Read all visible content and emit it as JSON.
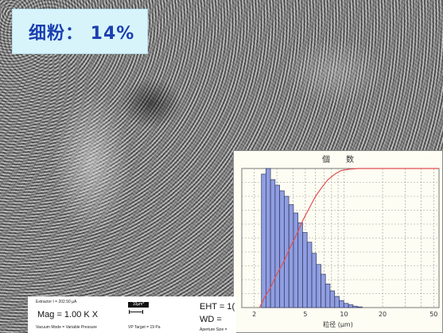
{
  "title_label": "细粉： 14%",
  "sem_info": {
    "detector_line": "Extractor I = 202.50 µA",
    "magnification": "Mag =   1.00 K X",
    "scale_bar": "10µm*",
    "vacuum_mode": "Vacuum Mode = Variable Pressure",
    "vp_target": "VP Target =    19 Pa",
    "eht": "EHT = 1(",
    "wd": "WD =",
    "aperture": "Aperture Size ="
  },
  "chart_data": {
    "type": "bar",
    "title": "個　　数",
    "xlabel": "粒径 (μm)",
    "x_scale": "log",
    "xlim": [
      1.6,
      55
    ],
    "x_ticks": [
      "2",
      "5",
      "10",
      "20",
      "50"
    ],
    "series": [
      {
        "kind": "histogram",
        "bin_centers": [
          2.37,
          2.57,
          2.79,
          3.03,
          3.29,
          3.57,
          3.88,
          4.21,
          4.57,
          4.96,
          5.39,
          5.85,
          6.35,
          6.89,
          7.48,
          8.12,
          8.82,
          9.57,
          10.4,
          11.3,
          12.2,
          13.3
        ],
        "values": [
          96,
          100,
          92,
          88,
          84,
          80,
          74,
          68,
          61,
          54,
          47,
          39,
          31,
          24,
          17,
          12,
          8,
          5,
          3,
          2,
          1,
          0.5
        ],
        "ylim": [
          0,
          100
        ]
      },
      {
        "kind": "cumulative",
        "x": [
          2.2,
          2.4,
          2.7,
          3.0,
          3.4,
          3.8,
          4.3,
          4.8,
          5.4,
          6.0,
          6.8,
          7.5,
          8.5,
          9.5,
          11,
          13,
          15,
          20,
          30,
          55
        ],
        "values": [
          0,
          7,
          15,
          24,
          33,
          43,
          53,
          63,
          72,
          80,
          87,
          92,
          96,
          98.5,
          99.5,
          100,
          100,
          100,
          100,
          100
        ],
        "ylim": [
          0,
          100
        ]
      }
    ],
    "grid": true,
    "colors": {
      "bars": "#8f9ee2",
      "bar_edge": "#33375e",
      "curve": "#e15050",
      "grid": "#999999",
      "background": "#fefdf3"
    }
  }
}
